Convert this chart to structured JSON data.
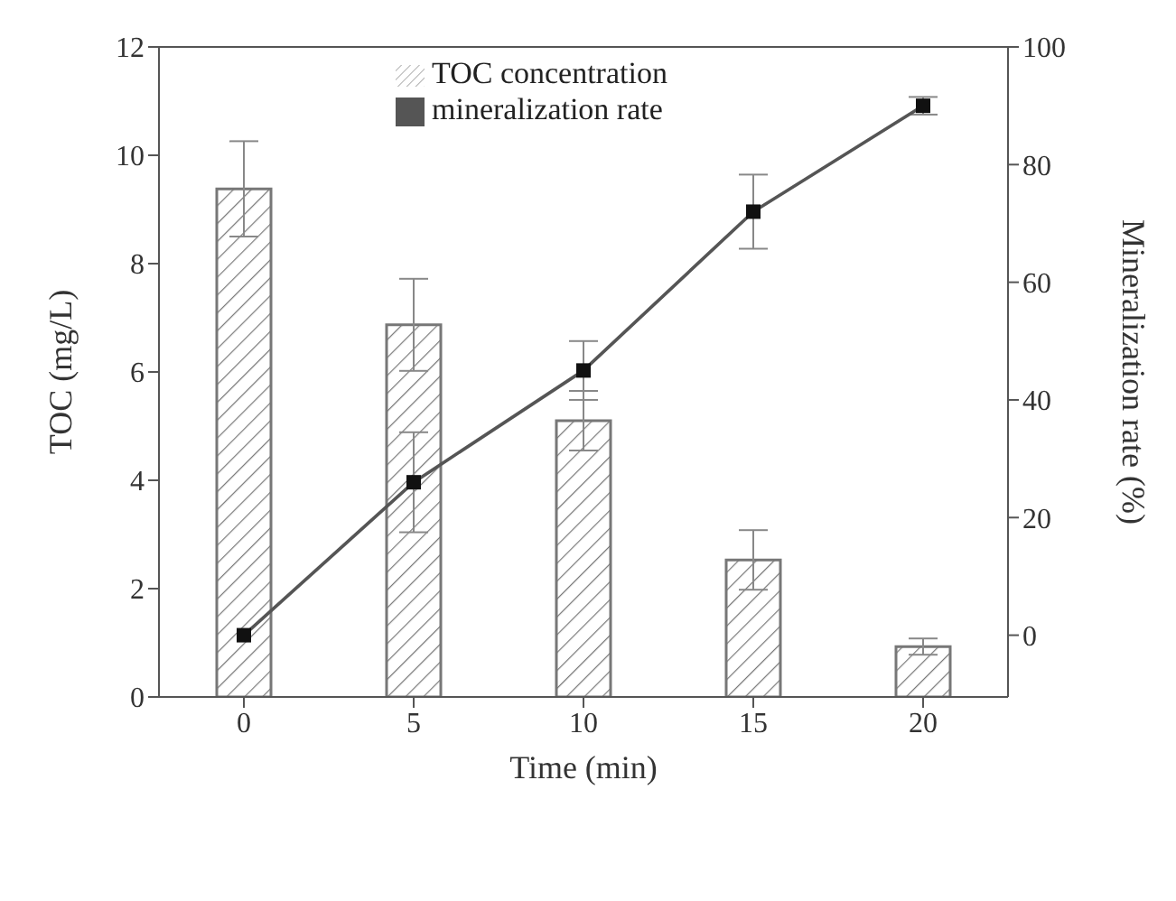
{
  "chart_data": {
    "type": "bar",
    "xlabel": "Time (min)",
    "ylabel": "TOC (mg/L)",
    "y2label": "Mineralization rate (%)",
    "categories": [
      "0",
      "5",
      "10",
      "15",
      "20"
    ],
    "series": [
      {
        "name": "TOC concentration",
        "color": "#777777",
        "values": [
          9.38,
          6.87,
          5.1,
          2.53,
          0.93
        ],
        "errors": [
          0.88,
          0.85,
          0.55,
          0.55,
          0.15
        ]
      },
      {
        "name": "mineralization rate",
        "type": "line",
        "axis": "y2",
        "color": "#555555",
        "marker": "square",
        "values": [
          0,
          26,
          45,
          72,
          90
        ],
        "errors": [
          null,
          8.5,
          5,
          6.3,
          1.5
        ]
      }
    ],
    "ylim": [
      0,
      12
    ],
    "yticks": [
      0,
      2,
      4,
      6,
      8,
      10,
      12
    ],
    "y2lim": [
      -10.5,
      100
    ],
    "y2ticks": [
      0,
      20,
      40,
      60,
      80,
      100
    ],
    "legend": "top"
  }
}
